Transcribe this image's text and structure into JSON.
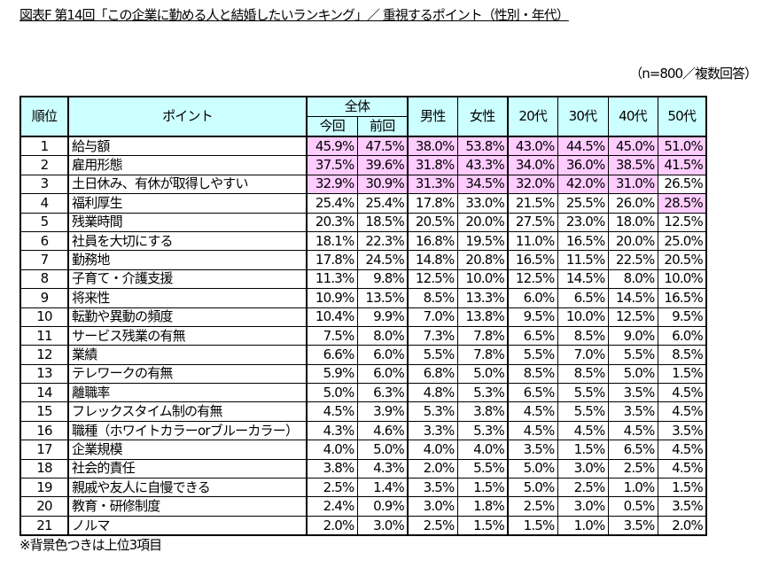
{
  "title": "図表F 第14回「この企業に勤める人と結婚したいランキング」／ 重視するポイント（性別・年代）",
  "note": "（n=800／複数回答）",
  "footnote": "※背景色つきは上位3項目",
  "colors": {
    "header_bg": "#ccffff",
    "highlight_bg": "#ffccff"
  },
  "headers": {
    "rank": "順位",
    "point": "ポイント",
    "overall": "全体",
    "current": "今回",
    "previous": "前回",
    "male": "男性",
    "female": "女性",
    "age20": "20代",
    "age30": "30代",
    "age40": "40代",
    "age50": "50代"
  },
  "rows": [
    {
      "rank": "1",
      "point": "給与額",
      "values": [
        "45.9%",
        "47.5%",
        "38.0%",
        "53.8%",
        "43.0%",
        "44.5%",
        "45.0%",
        "51.0%"
      ],
      "highlight": [
        1,
        1,
        1,
        1,
        1,
        1,
        1,
        1
      ]
    },
    {
      "rank": "2",
      "point": "雇用形態",
      "values": [
        "37.5%",
        "39.6%",
        "31.8%",
        "43.3%",
        "34.0%",
        "36.0%",
        "38.5%",
        "41.5%"
      ],
      "highlight": [
        1,
        1,
        1,
        1,
        1,
        1,
        1,
        1
      ]
    },
    {
      "rank": "3",
      "point": "土日休み、有休が取得しやすい",
      "values": [
        "32.9%",
        "30.9%",
        "31.3%",
        "34.5%",
        "32.0%",
        "42.0%",
        "31.0%",
        "26.5%"
      ],
      "highlight": [
        1,
        1,
        1,
        1,
        1,
        1,
        1,
        0
      ]
    },
    {
      "rank": "4",
      "point": "福利厚生",
      "values": [
        "25.4%",
        "25.4%",
        "17.8%",
        "33.0%",
        "21.5%",
        "25.5%",
        "26.0%",
        "28.5%"
      ],
      "highlight": [
        0,
        0,
        0,
        0,
        0,
        0,
        0,
        1
      ]
    },
    {
      "rank": "5",
      "point": "残業時間",
      "values": [
        "20.3%",
        "18.5%",
        "20.5%",
        "20.0%",
        "27.5%",
        "23.0%",
        "18.0%",
        "12.5%"
      ]
    },
    {
      "rank": "6",
      "point": "社員を大切にする",
      "values": [
        "18.1%",
        "22.3%",
        "16.8%",
        "19.5%",
        "11.0%",
        "16.5%",
        "20.0%",
        "25.0%"
      ]
    },
    {
      "rank": "7",
      "point": "勤務地",
      "values": [
        "17.8%",
        "24.5%",
        "14.8%",
        "20.8%",
        "16.5%",
        "11.5%",
        "22.5%",
        "20.5%"
      ]
    },
    {
      "rank": "8",
      "point": "子育て・介護支援",
      "values": [
        "11.3%",
        "9.8%",
        "12.5%",
        "10.0%",
        "12.5%",
        "14.5%",
        "8.0%",
        "10.0%"
      ]
    },
    {
      "rank": "9",
      "point": "将来性",
      "values": [
        "10.9%",
        "13.5%",
        "8.5%",
        "13.3%",
        "6.0%",
        "6.5%",
        "14.5%",
        "16.5%"
      ]
    },
    {
      "rank": "10",
      "point": "転勤や異動の頻度",
      "values": [
        "10.4%",
        "9.9%",
        "7.0%",
        "13.8%",
        "9.5%",
        "10.0%",
        "12.5%",
        "9.5%"
      ]
    },
    {
      "rank": "11",
      "point": "サービス残業の有無",
      "values": [
        "7.5%",
        "8.0%",
        "7.3%",
        "7.8%",
        "6.5%",
        "8.5%",
        "9.0%",
        "6.0%"
      ]
    },
    {
      "rank": "12",
      "point": "業績",
      "values": [
        "6.6%",
        "6.0%",
        "5.5%",
        "7.8%",
        "5.5%",
        "7.0%",
        "5.5%",
        "8.5%"
      ]
    },
    {
      "rank": "13",
      "point": "テレワークの有無",
      "values": [
        "5.9%",
        "6.0%",
        "6.8%",
        "5.0%",
        "8.5%",
        "8.5%",
        "5.0%",
        "1.5%"
      ]
    },
    {
      "rank": "14",
      "point": "離職率",
      "values": [
        "5.0%",
        "6.3%",
        "4.8%",
        "5.3%",
        "6.5%",
        "5.5%",
        "3.5%",
        "4.5%"
      ]
    },
    {
      "rank": "15",
      "point": "フレックスタイム制の有無",
      "values": [
        "4.5%",
        "3.9%",
        "5.3%",
        "3.8%",
        "4.5%",
        "5.5%",
        "3.5%",
        "4.5%"
      ]
    },
    {
      "rank": "16",
      "point": "職種（ホワイトカラーorブルーカラー）",
      "values": [
        "4.3%",
        "4.6%",
        "3.3%",
        "5.3%",
        "4.5%",
        "4.5%",
        "4.5%",
        "3.5%"
      ]
    },
    {
      "rank": "17",
      "point": "企業規模",
      "values": [
        "4.0%",
        "5.0%",
        "4.0%",
        "4.0%",
        "3.5%",
        "1.5%",
        "6.5%",
        "4.5%"
      ]
    },
    {
      "rank": "18",
      "point": "社会的責任",
      "values": [
        "3.8%",
        "4.3%",
        "2.0%",
        "5.5%",
        "5.0%",
        "3.0%",
        "2.5%",
        "4.5%"
      ]
    },
    {
      "rank": "19",
      "point": "親戚や友人に自慢できる",
      "values": [
        "2.5%",
        "1.4%",
        "3.5%",
        "1.5%",
        "5.0%",
        "2.5%",
        "1.0%",
        "1.5%"
      ]
    },
    {
      "rank": "20",
      "point": "教育・研修制度",
      "values": [
        "2.4%",
        "0.9%",
        "3.0%",
        "1.8%",
        "2.5%",
        "3.0%",
        "0.5%",
        "3.5%"
      ]
    },
    {
      "rank": "21",
      "point": "ノルマ",
      "values": [
        "2.0%",
        "3.0%",
        "2.5%",
        "1.5%",
        "1.5%",
        "1.0%",
        "3.5%",
        "2.0%"
      ]
    }
  ]
}
